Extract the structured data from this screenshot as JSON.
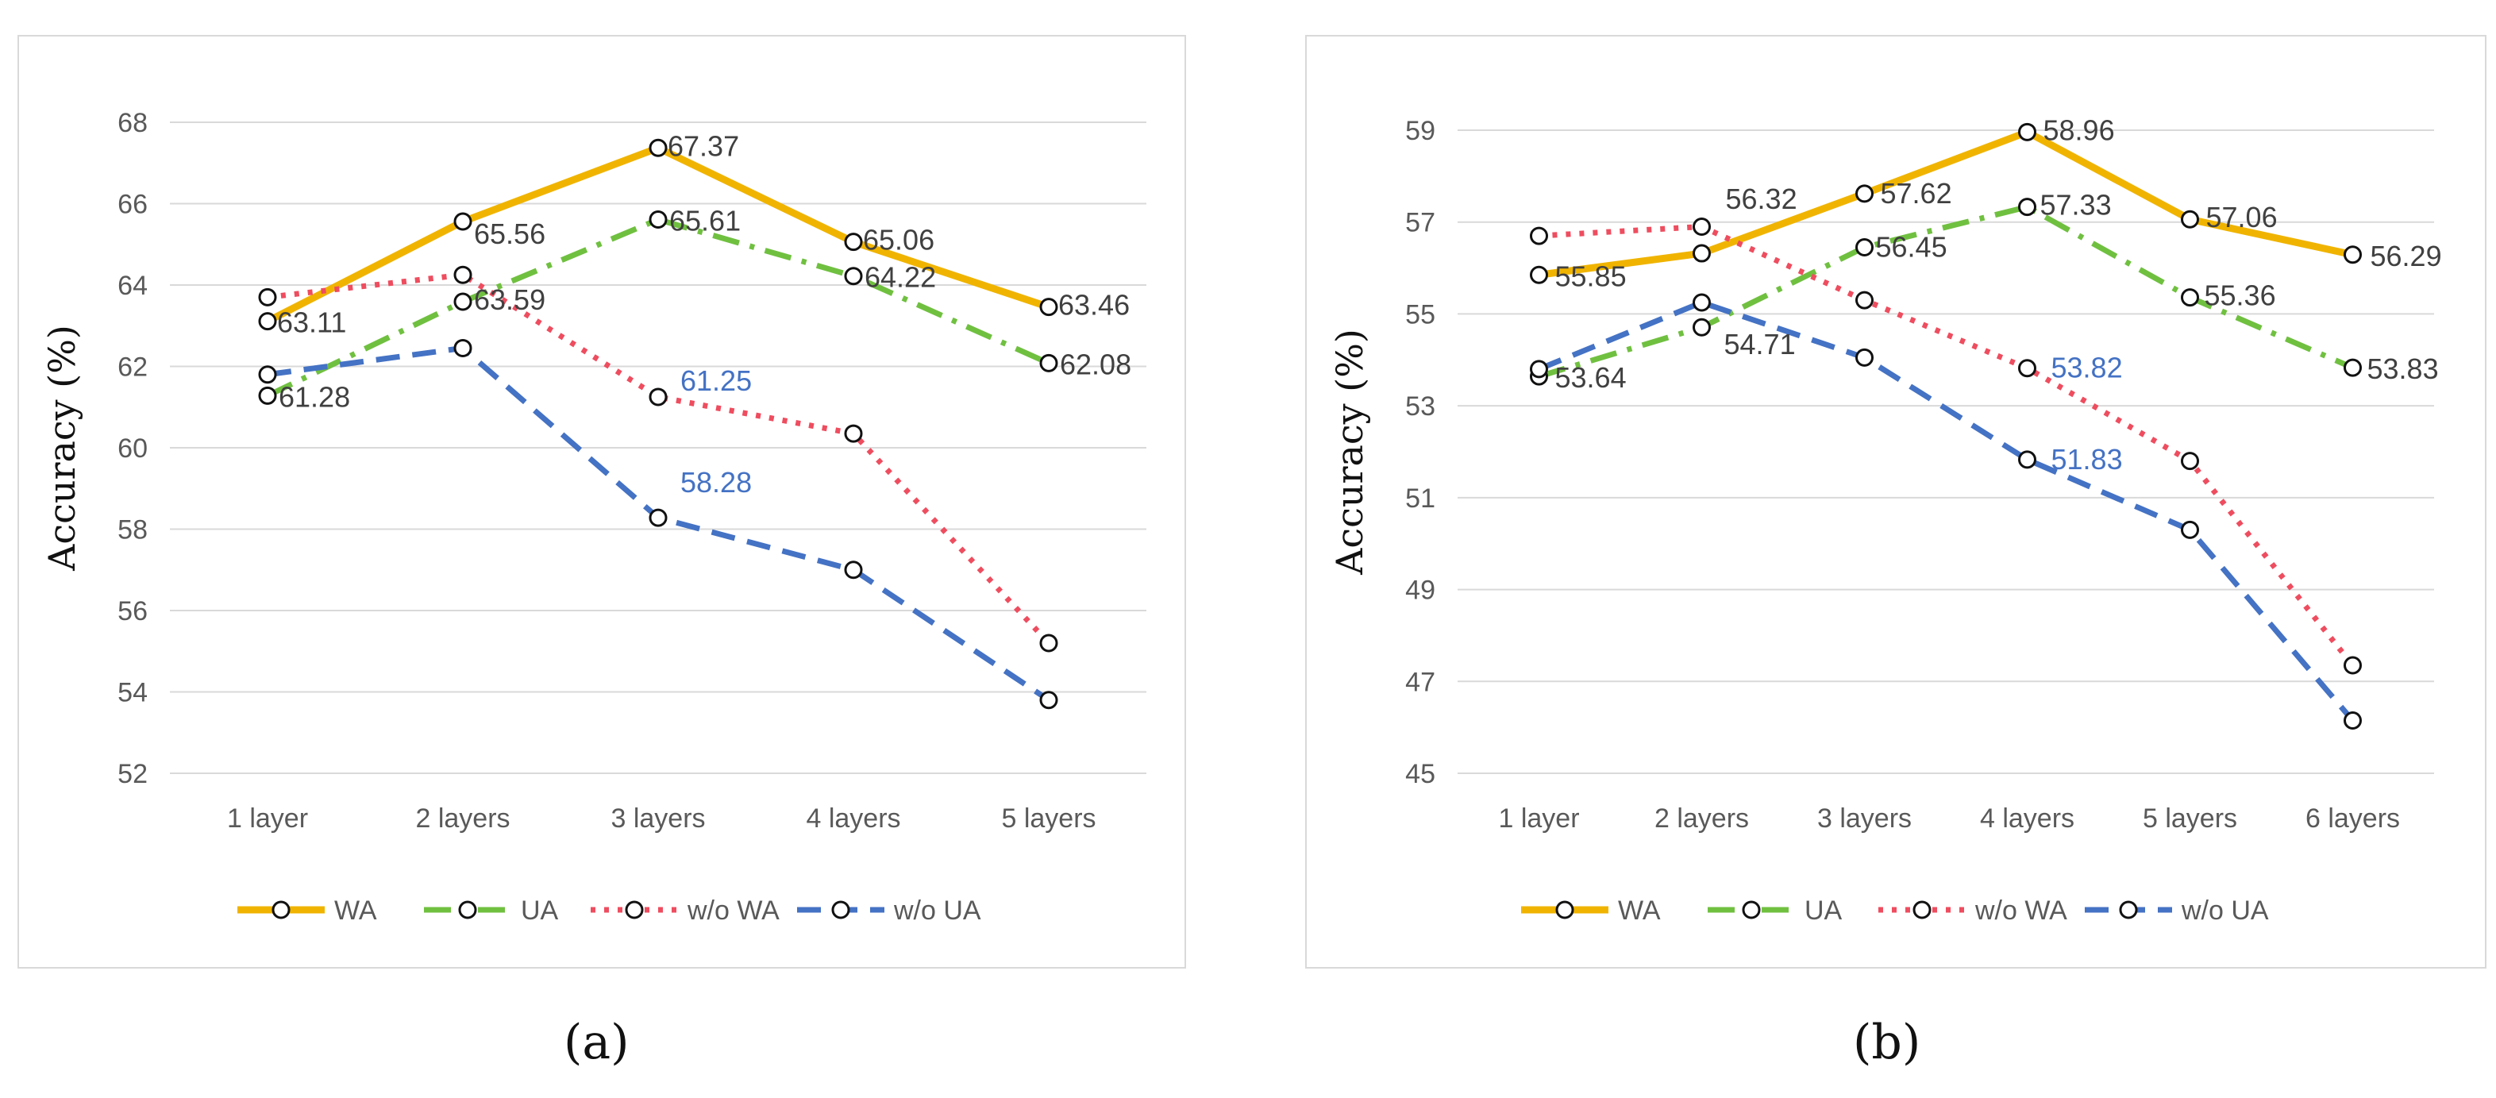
{
  "chart_data": [
    {
      "id": "a",
      "type": "line",
      "caption": "(a)",
      "categories": [
        "1 layer",
        "2 layers",
        "3 layers",
        "4 layers",
        "5 layers"
      ],
      "ylabel": "Accuracy (%)",
      "ylim": [
        52,
        68
      ],
      "yticks": [
        "52",
        "54",
        "56",
        "58",
        "60",
        "62",
        "64",
        "66",
        "68"
      ],
      "grid": true,
      "legend_position": "bottom",
      "series": [
        {
          "name": "WA",
          "color": "#f0b400",
          "dash": "solid",
          "values": [
            63.11,
            65.56,
            67.37,
            65.06,
            63.46
          ],
          "labels": [
            "63.11",
            "65.56",
            "67.37",
            "65.06",
            "63.46"
          ],
          "label_color": "#404040"
        },
        {
          "name": "UA",
          "color": "#70c040",
          "dash": "dashdot",
          "values": [
            61.28,
            63.59,
            65.61,
            64.22,
            62.08
          ],
          "labels": [
            "61.28",
            "63.59",
            "65.61",
            "64.22",
            "62.08"
          ],
          "label_color": "#404040"
        },
        {
          "name": "w/o WA",
          "color": "#ee4d5f",
          "dash": "dot",
          "values": [
            63.7,
            64.25,
            61.25,
            60.35,
            55.2
          ],
          "labels": [
            "",
            "",
            "61.25",
            "",
            ""
          ],
          "label_color": "#4472c4"
        },
        {
          "name": "w/o UA",
          "color": "#4472c4",
          "dash": "dash",
          "values": [
            61.8,
            62.45,
            58.28,
            57.0,
            53.8
          ],
          "labels": [
            "",
            "",
            "58.28",
            "",
            ""
          ],
          "label_color": "#4472c4"
        }
      ]
    },
    {
      "id": "b",
      "type": "line",
      "caption": "(b)",
      "categories": [
        "1 layer",
        "2 layers",
        "3 layers",
        "4 layers",
        "5 layers",
        "6 layers"
      ],
      "ylabel": "Accuracy (%)",
      "ylim": [
        45,
        59
      ],
      "yticks": [
        "45",
        "47",
        "49",
        "51",
        "53",
        "55",
        "57",
        "59"
      ],
      "grid": true,
      "legend_position": "bottom",
      "series": [
        {
          "name": "WA",
          "color": "#f0b400",
          "dash": "solid",
          "values": [
            55.85,
            56.32,
            57.62,
            58.96,
            57.06,
            56.29
          ],
          "labels": [
            "55.85",
            "56.32",
            "57.62",
            "58.96",
            "57.06",
            "56.29"
          ],
          "label_color": "#404040"
        },
        {
          "name": "UA",
          "color": "#70c040",
          "dash": "dashdot",
          "values": [
            53.64,
            54.71,
            56.45,
            57.33,
            55.36,
            53.83
          ],
          "labels": [
            "53.64",
            "54.71",
            "56.45",
            "57.33",
            "55.36",
            "53.83"
          ],
          "label_color": "#404040"
        },
        {
          "name": "w/o WA",
          "color": "#ee4d5f",
          "dash": "dot",
          "values": [
            56.7,
            56.9,
            55.3,
            53.82,
            51.8,
            47.35
          ],
          "labels": [
            "",
            "",
            "",
            "53.82",
            "",
            ""
          ],
          "label_color": "#4472c4"
        },
        {
          "name": "w/o UA",
          "color": "#4472c4",
          "dash": "dash",
          "values": [
            53.8,
            55.25,
            54.05,
            51.83,
            50.3,
            46.15
          ],
          "labels": [
            "",
            "",
            "",
            "51.83",
            "",
            ""
          ],
          "label_color": "#4472c4"
        }
      ]
    }
  ]
}
